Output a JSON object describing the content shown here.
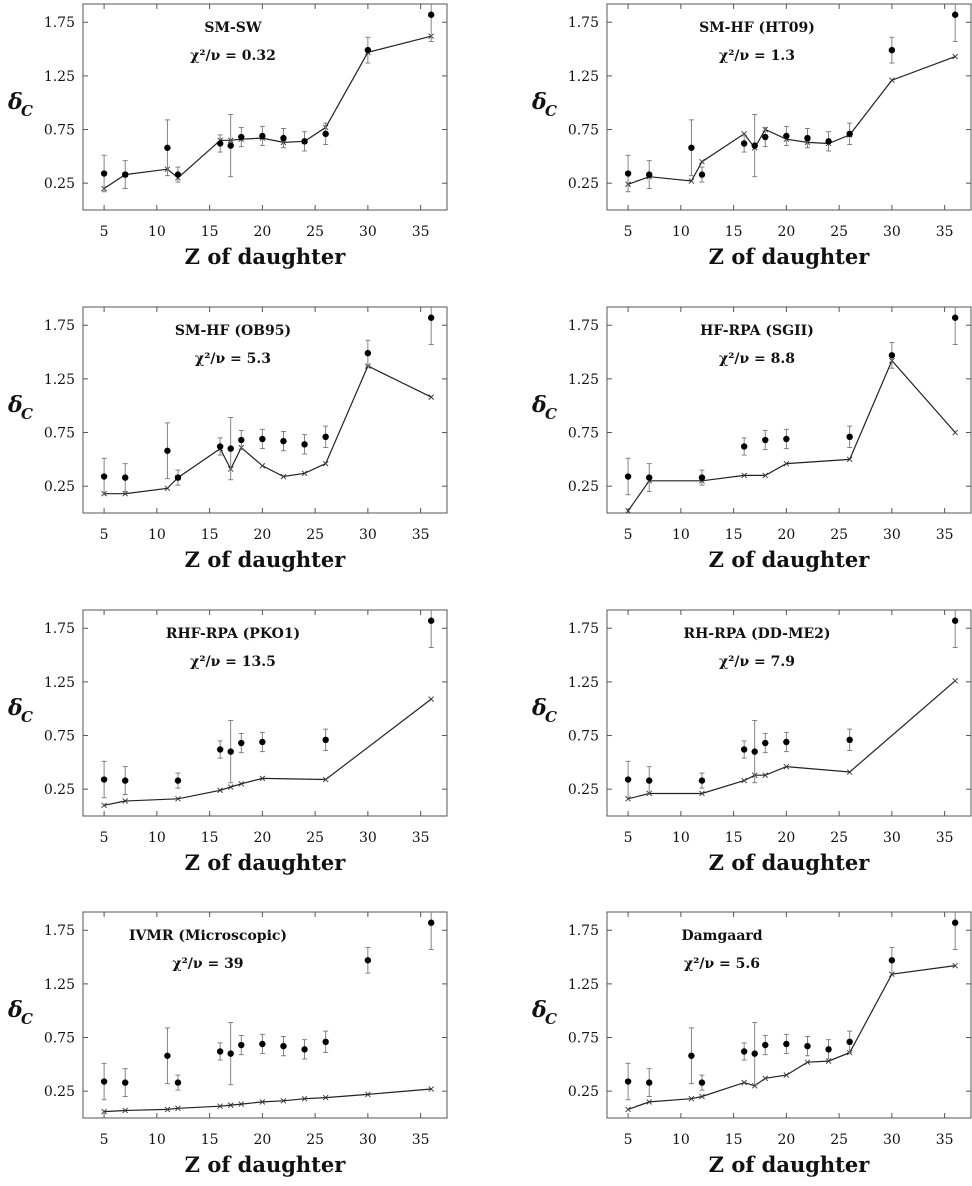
{
  "chart_data": [
    {
      "type": "scatter",
      "title": "SM-SW",
      "annotation": "χ²/ν = 0.32",
      "xlabel": "Z of daughter",
      "ylabel": "δ",
      "ylabel_sub": "C",
      "xlim": [
        3,
        37.5
      ],
      "ylim": [
        0,
        1.92
      ],
      "xticks": [
        5,
        10,
        15,
        20,
        25,
        30,
        35
      ],
      "yticks": [
        0.25,
        0.75,
        1.25,
        1.75
      ],
      "series": [
        {
          "marker": "filled-circle",
          "points": [
            {
              "x": 5,
              "y": 0.34,
              "err": 0.17
            },
            {
              "x": 7,
              "y": 0.33,
              "err": 0.13
            },
            {
              "x": 11,
              "y": 0.58,
              "err": 0.26
            },
            {
              "x": 12,
              "y": 0.33,
              "err": 0.07
            },
            {
              "x": 16,
              "y": 0.62,
              "err": 0.08
            },
            {
              "x": 17,
              "y": 0.6,
              "err": 0.29
            },
            {
              "x": 18,
              "y": 0.68,
              "err": 0.09
            },
            {
              "x": 20,
              "y": 0.69,
              "err": 0.09
            },
            {
              "x": 22,
              "y": 0.67,
              "err": 0.09
            },
            {
              "x": 24,
              "y": 0.64,
              "err": 0.09
            },
            {
              "x": 26,
              "y": 0.71,
              "err": 0.1
            },
            {
              "x": 30,
              "y": 1.49,
              "err": 0.12
            },
            {
              "x": 36,
              "y": 1.82,
              "err": 0.25
            }
          ]
        },
        {
          "marker": "line-cross",
          "x": [
            5,
            7,
            11,
            12,
            16,
            17,
            18,
            20,
            22,
            24,
            26,
            30,
            36
          ],
          "y": [
            0.2,
            0.33,
            0.38,
            0.3,
            0.65,
            0.65,
            0.66,
            0.67,
            0.63,
            0.64,
            0.77,
            1.47,
            1.62
          ]
        }
      ]
    },
    {
      "type": "scatter",
      "title": "SM-HF (HT09)",
      "annotation": "χ²/ν = 1.3",
      "xlabel": "Z of daughter",
      "ylabel": "δ",
      "ylabel_sub": "C",
      "xlim": [
        3,
        37.5
      ],
      "ylim": [
        0,
        1.92
      ],
      "xticks": [
        5,
        10,
        15,
        20,
        25,
        30,
        35
      ],
      "yticks": [
        0.25,
        0.75,
        1.25,
        1.75
      ],
      "series": [
        {
          "marker": "filled-circle",
          "points": [
            {
              "x": 5,
              "y": 0.34,
              "err": 0.17
            },
            {
              "x": 7,
              "y": 0.33,
              "err": 0.13
            },
            {
              "x": 11,
              "y": 0.58,
              "err": 0.26
            },
            {
              "x": 12,
              "y": 0.33,
              "err": 0.07
            },
            {
              "x": 16,
              "y": 0.62,
              "err": 0.08
            },
            {
              "x": 17,
              "y": 0.6,
              "err": 0.29
            },
            {
              "x": 18,
              "y": 0.68,
              "err": 0.09
            },
            {
              "x": 20,
              "y": 0.69,
              "err": 0.09
            },
            {
              "x": 22,
              "y": 0.67,
              "err": 0.09
            },
            {
              "x": 24,
              "y": 0.64,
              "err": 0.09
            },
            {
              "x": 26,
              "y": 0.71,
              "err": 0.1
            },
            {
              "x": 30,
              "y": 1.49,
              "err": 0.12
            },
            {
              "x": 36,
              "y": 1.82,
              "err": 0.25
            }
          ]
        },
        {
          "marker": "line-cross",
          "x": [
            5,
            7,
            11,
            12,
            16,
            17,
            18,
            20,
            22,
            24,
            26,
            30,
            36
          ],
          "y": [
            0.24,
            0.31,
            0.27,
            0.45,
            0.71,
            0.58,
            0.75,
            0.66,
            0.63,
            0.62,
            0.7,
            1.21,
            1.43
          ]
        }
      ]
    },
    {
      "type": "scatter",
      "title": "SM-HF (OB95)",
      "annotation": "χ²/ν = 5.3",
      "xlabel": "Z of daughter",
      "ylabel": "δ",
      "ylabel_sub": "C",
      "xlim": [
        3,
        37.5
      ],
      "ylim": [
        0,
        1.92
      ],
      "xticks": [
        5,
        10,
        15,
        20,
        25,
        30,
        35
      ],
      "yticks": [
        0.25,
        0.75,
        1.25,
        1.75
      ],
      "series": [
        {
          "marker": "filled-circle",
          "points": [
            {
              "x": 5,
              "y": 0.34,
              "err": 0.17
            },
            {
              "x": 7,
              "y": 0.33,
              "err": 0.13
            },
            {
              "x": 11,
              "y": 0.58,
              "err": 0.26
            },
            {
              "x": 12,
              "y": 0.33,
              "err": 0.07
            },
            {
              "x": 16,
              "y": 0.62,
              "err": 0.08
            },
            {
              "x": 17,
              "y": 0.6,
              "err": 0.29
            },
            {
              "x": 18,
              "y": 0.68,
              "err": 0.09
            },
            {
              "x": 20,
              "y": 0.69,
              "err": 0.09
            },
            {
              "x": 22,
              "y": 0.67,
              "err": 0.09
            },
            {
              "x": 24,
              "y": 0.64,
              "err": 0.09
            },
            {
              "x": 26,
              "y": 0.71,
              "err": 0.1
            },
            {
              "x": 30,
              "y": 1.49,
              "err": 0.12
            },
            {
              "x": 36,
              "y": 1.82,
              "err": 0.25
            }
          ]
        },
        {
          "marker": "line-cross",
          "x": [
            5,
            7,
            11,
            12,
            16,
            17,
            18,
            20,
            22,
            24,
            26,
            30,
            36
          ],
          "y": [
            0.18,
            0.18,
            0.23,
            0.33,
            0.6,
            0.41,
            0.61,
            0.44,
            0.34,
            0.37,
            0.46,
            1.37,
            1.08
          ]
        }
      ]
    },
    {
      "type": "scatter",
      "title": "HF-RPA (SGII)",
      "annotation": "χ²/ν = 8.8",
      "xlabel": "Z of daughter",
      "ylabel": "δ",
      "ylabel_sub": "C",
      "xlim": [
        3,
        37.5
      ],
      "ylim": [
        0,
        1.92
      ],
      "xticks": [
        5,
        10,
        15,
        20,
        25,
        30,
        35
      ],
      "yticks": [
        0.25,
        0.75,
        1.25,
        1.75
      ],
      "series": [
        {
          "marker": "filled-circle",
          "points": [
            {
              "x": 5,
              "y": 0.34,
              "err": 0.17
            },
            {
              "x": 7,
              "y": 0.33,
              "err": 0.13
            },
            {
              "x": 12,
              "y": 0.33,
              "err": 0.07
            },
            {
              "x": 16,
              "y": 0.62,
              "err": 0.08
            },
            {
              "x": 18,
              "y": 0.68,
              "err": 0.09
            },
            {
              "x": 20,
              "y": 0.69,
              "err": 0.09
            },
            {
              "x": 26,
              "y": 0.71,
              "err": 0.1
            },
            {
              "x": 30,
              "y": 1.47,
              "err": 0.12
            },
            {
              "x": 36,
              "y": 1.82,
              "err": 0.25
            }
          ]
        },
        {
          "marker": "line-cross",
          "x": [
            5,
            7,
            12,
            16,
            18,
            20,
            26,
            30,
            36
          ],
          "y": [
            0.02,
            0.3,
            0.3,
            0.35,
            0.35,
            0.46,
            0.5,
            1.42,
            0.75
          ]
        }
      ]
    },
    {
      "type": "scatter",
      "title": "RHF-RPA (PKO1)",
      "annotation": "χ²/ν = 13.5",
      "xlabel": "Z of daughter",
      "ylabel": "δ",
      "ylabel_sub": "C",
      "xlim": [
        3,
        37.5
      ],
      "ylim": [
        0,
        1.92
      ],
      "xticks": [
        5,
        10,
        15,
        20,
        25,
        30,
        35
      ],
      "yticks": [
        0.25,
        0.75,
        1.25,
        1.75
      ],
      "series": [
        {
          "marker": "filled-circle",
          "points": [
            {
              "x": 5,
              "y": 0.34,
              "err": 0.17
            },
            {
              "x": 7,
              "y": 0.33,
              "err": 0.13
            },
            {
              "x": 12,
              "y": 0.33,
              "err": 0.07
            },
            {
              "x": 16,
              "y": 0.62,
              "err": 0.08
            },
            {
              "x": 17,
              "y": 0.6,
              "err": 0.29
            },
            {
              "x": 18,
              "y": 0.68,
              "err": 0.09
            },
            {
              "x": 20,
              "y": 0.69,
              "err": 0.09
            },
            {
              "x": 26,
              "y": 0.71,
              "err": 0.1
            },
            {
              "x": 36,
              "y": 1.82,
              "err": 0.25
            }
          ]
        },
        {
          "marker": "line-cross",
          "x": [
            5,
            7,
            12,
            16,
            17,
            18,
            20,
            26,
            36
          ],
          "y": [
            0.1,
            0.14,
            0.16,
            0.24,
            0.27,
            0.3,
            0.35,
            0.34,
            1.09
          ]
        }
      ]
    },
    {
      "type": "scatter",
      "title": "RH-RPA (DD-ME2)",
      "annotation": "χ²/ν = 7.9",
      "xlabel": "Z of daughter",
      "ylabel": "δ",
      "ylabel_sub": "C",
      "xlim": [
        3,
        37.5
      ],
      "ylim": [
        0,
        1.92
      ],
      "xticks": [
        5,
        10,
        15,
        20,
        25,
        30,
        35
      ],
      "yticks": [
        0.25,
        0.75,
        1.25,
        1.75
      ],
      "series": [
        {
          "marker": "filled-circle",
          "points": [
            {
              "x": 5,
              "y": 0.34,
              "err": 0.17
            },
            {
              "x": 7,
              "y": 0.33,
              "err": 0.13
            },
            {
              "x": 12,
              "y": 0.33,
              "err": 0.07
            },
            {
              "x": 16,
              "y": 0.62,
              "err": 0.08
            },
            {
              "x": 17,
              "y": 0.6,
              "err": 0.29
            },
            {
              "x": 18,
              "y": 0.68,
              "err": 0.09
            },
            {
              "x": 20,
              "y": 0.69,
              "err": 0.09
            },
            {
              "x": 26,
              "y": 0.71,
              "err": 0.1
            },
            {
              "x": 36,
              "y": 1.82,
              "err": 0.25
            }
          ]
        },
        {
          "marker": "line-cross",
          "x": [
            5,
            7,
            12,
            16,
            17,
            18,
            20,
            26,
            36
          ],
          "y": [
            0.16,
            0.21,
            0.21,
            0.33,
            0.38,
            0.38,
            0.46,
            0.41,
            1.26
          ]
        }
      ]
    },
    {
      "type": "scatter",
      "title": "IVMR (Microscopic)",
      "annotation": "χ²/ν = 39",
      "xlabel": "Z of daughter",
      "ylabel": "δ",
      "ylabel_sub": "C",
      "xlim": [
        3,
        37.5
      ],
      "ylim": [
        0,
        1.92
      ],
      "xticks": [
        5,
        10,
        15,
        20,
        25,
        30,
        35
      ],
      "yticks": [
        0.25,
        0.75,
        1.25,
        1.75
      ],
      "series": [
        {
          "marker": "filled-circle",
          "points": [
            {
              "x": 5,
              "y": 0.34,
              "err": 0.17
            },
            {
              "x": 7,
              "y": 0.33,
              "err": 0.13
            },
            {
              "x": 11,
              "y": 0.58,
              "err": 0.26
            },
            {
              "x": 12,
              "y": 0.33,
              "err": 0.07
            },
            {
              "x": 16,
              "y": 0.62,
              "err": 0.08
            },
            {
              "x": 17,
              "y": 0.6,
              "err": 0.29
            },
            {
              "x": 18,
              "y": 0.68,
              "err": 0.09
            },
            {
              "x": 20,
              "y": 0.69,
              "err": 0.09
            },
            {
              "x": 22,
              "y": 0.67,
              "err": 0.09
            },
            {
              "x": 24,
              "y": 0.64,
              "err": 0.09
            },
            {
              "x": 26,
              "y": 0.71,
              "err": 0.1
            },
            {
              "x": 30,
              "y": 1.47,
              "err": 0.12
            },
            {
              "x": 36,
              "y": 1.82,
              "err": 0.25
            }
          ]
        },
        {
          "marker": "line-cross",
          "x": [
            5,
            7,
            11,
            12,
            16,
            17,
            18,
            20,
            22,
            24,
            26,
            30,
            36
          ],
          "y": [
            0.06,
            0.07,
            0.08,
            0.09,
            0.11,
            0.12,
            0.13,
            0.15,
            0.16,
            0.18,
            0.19,
            0.22,
            0.27
          ]
        }
      ]
    },
    {
      "type": "scatter",
      "title": "Damgaard",
      "annotation": "χ²/ν = 5.6",
      "xlabel": "Z of daughter",
      "ylabel": "δ",
      "ylabel_sub": "C",
      "xlim": [
        3,
        37.5
      ],
      "ylim": [
        0,
        1.92
      ],
      "xticks": [
        5,
        10,
        15,
        20,
        25,
        30,
        35
      ],
      "yticks": [
        0.25,
        0.75,
        1.25,
        1.75
      ],
      "series": [
        {
          "marker": "filled-circle",
          "points": [
            {
              "x": 5,
              "y": 0.34,
              "err": 0.17
            },
            {
              "x": 7,
              "y": 0.33,
              "err": 0.13
            },
            {
              "x": 11,
              "y": 0.58,
              "err": 0.26
            },
            {
              "x": 12,
              "y": 0.33,
              "err": 0.07
            },
            {
              "x": 16,
              "y": 0.62,
              "err": 0.08
            },
            {
              "x": 17,
              "y": 0.6,
              "err": 0.29
            },
            {
              "x": 18,
              "y": 0.68,
              "err": 0.09
            },
            {
              "x": 20,
              "y": 0.69,
              "err": 0.09
            },
            {
              "x": 22,
              "y": 0.67,
              "err": 0.09
            },
            {
              "x": 24,
              "y": 0.64,
              "err": 0.09
            },
            {
              "x": 26,
              "y": 0.71,
              "err": 0.1
            },
            {
              "x": 30,
              "y": 1.47,
              "err": 0.12
            },
            {
              "x": 36,
              "y": 1.82,
              "err": 0.25
            }
          ]
        },
        {
          "marker": "line-cross",
          "x": [
            5,
            7,
            11,
            12,
            16,
            17,
            18,
            20,
            22,
            24,
            26,
            30,
            36
          ],
          "y": [
            0.08,
            0.15,
            0.18,
            0.2,
            0.33,
            0.3,
            0.37,
            0.4,
            0.52,
            0.53,
            0.61,
            1.34,
            1.42
          ]
        }
      ]
    }
  ]
}
